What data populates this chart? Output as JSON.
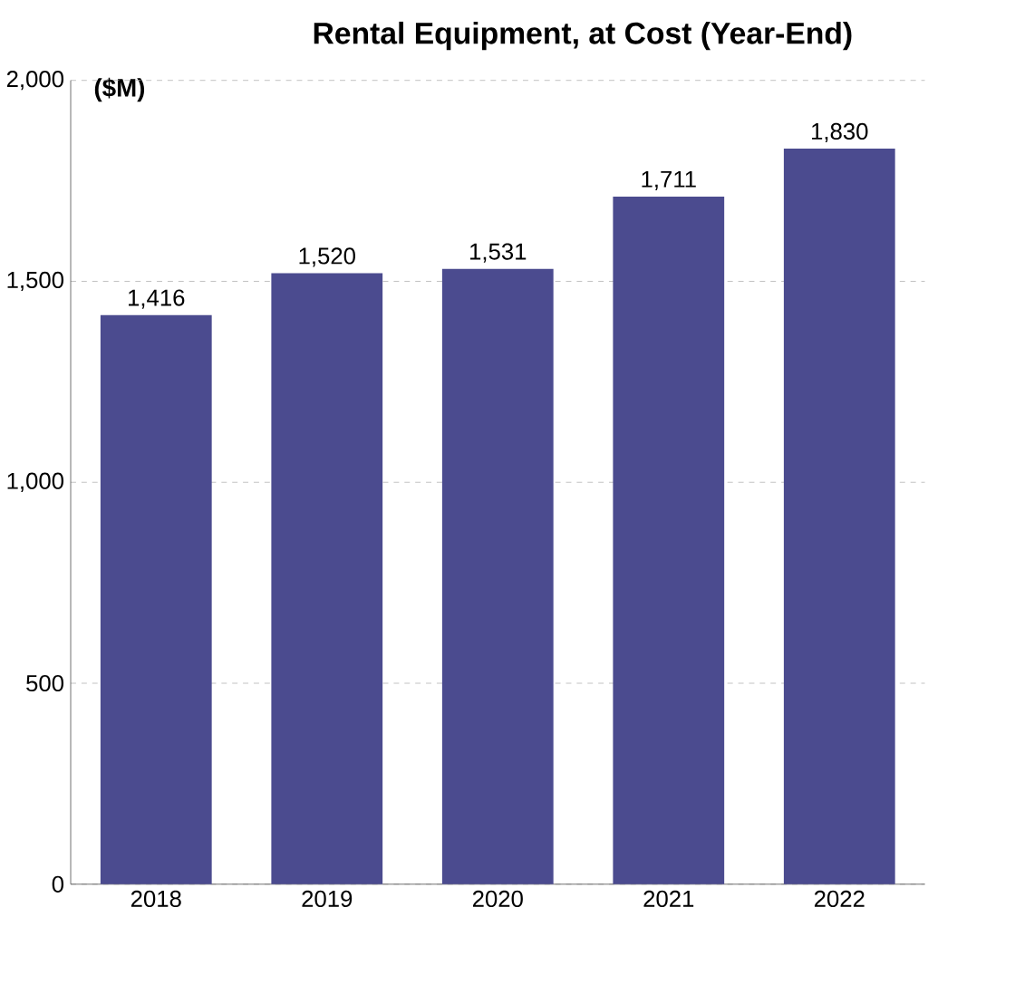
{
  "chart_data": {
    "type": "bar",
    "title": "Rental Equipment, at Cost (Year-End)",
    "ylabel": "($M)",
    "categories": [
      "2018",
      "2019",
      "2020",
      "2021",
      "2022"
    ],
    "values": [
      1416,
      1520,
      1531,
      1711,
      1830
    ],
    "value_labels": [
      "1,416",
      "1,520",
      "1,531",
      "1,711",
      "1,830"
    ],
    "color": "#4b4b8f",
    "ylim": [
      0,
      2000
    ],
    "yticks": [
      0,
      500,
      {
        "value": 1000,
        "label": "1,000"
      },
      {
        "value": 1500,
        "label": "1,500"
      },
      {
        "value": 2000,
        "label": "2,000"
      }
    ],
    "grid": "y"
  }
}
